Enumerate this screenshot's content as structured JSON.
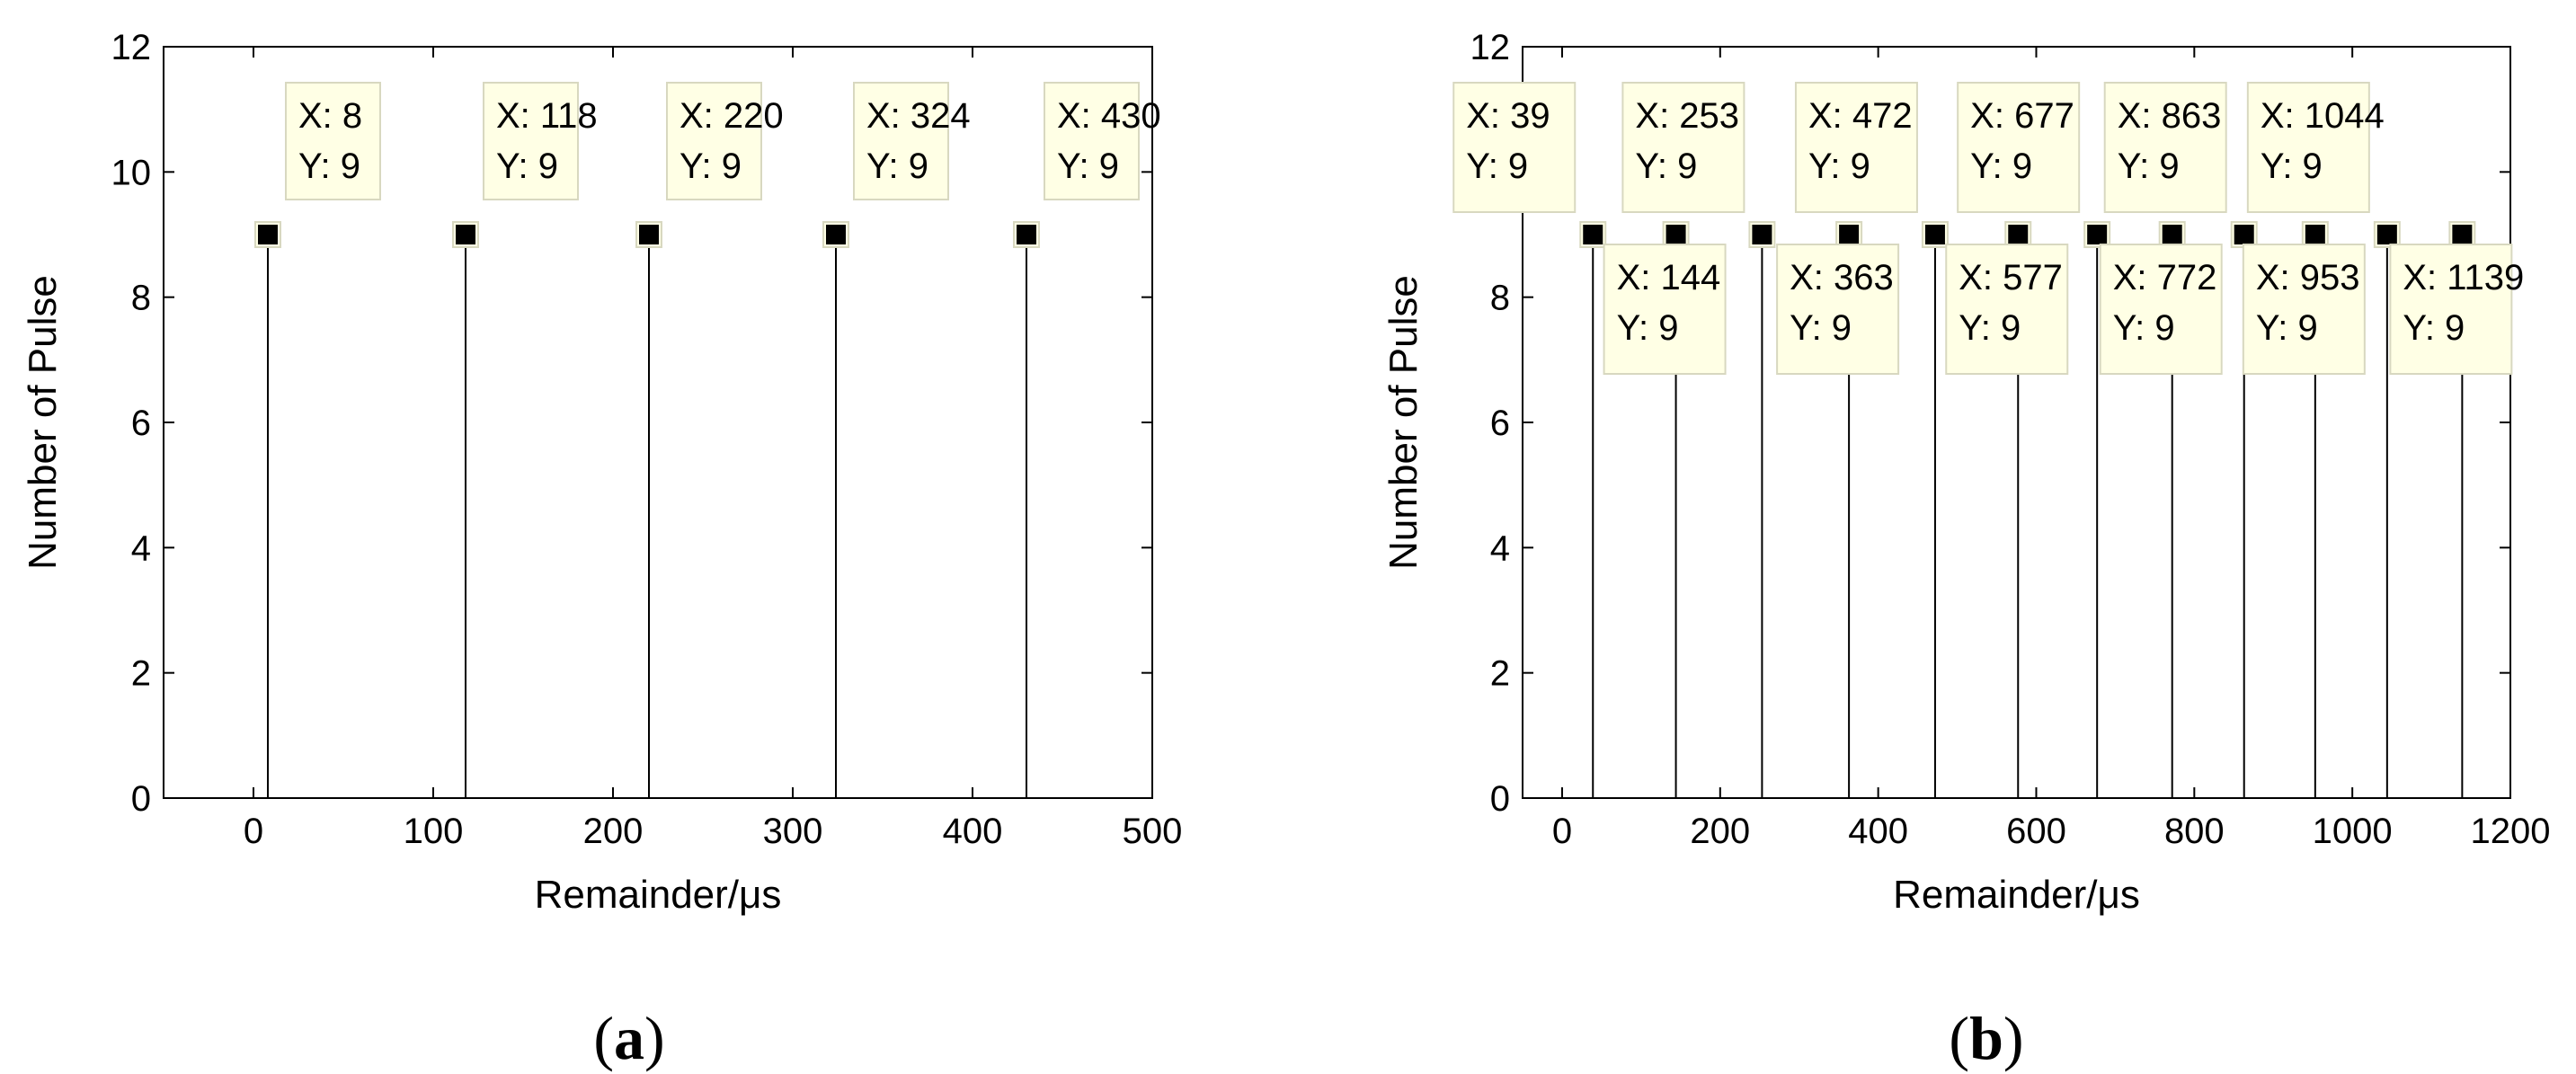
{
  "chart_data": [
    {
      "type": "line",
      "panel_label": "a",
      "xlabel": "Remainder/μs",
      "ylabel": "Number of Pulse",
      "xlim": [
        -50,
        500
      ],
      "ylim": [
        0,
        12
      ],
      "xticks": [
        0,
        100,
        200,
        300,
        400,
        500
      ],
      "yticks": [
        0,
        2,
        4,
        6,
        8,
        10,
        12
      ],
      "grid": false,
      "series": [
        {
          "x": [
            8,
            118,
            220,
            324,
            430
          ],
          "y": [
            9,
            9,
            9,
            9,
            9
          ]
        }
      ],
      "datatips": [
        {
          "x_text": "X: 8",
          "y_text": "Y: 9",
          "x": 8,
          "y": 9
        },
        {
          "x_text": "X: 118",
          "y_text": "Y: 9",
          "x": 118,
          "y": 9
        },
        {
          "x_text": "X: 220",
          "y_text": "Y: 9",
          "x": 220,
          "y": 9
        },
        {
          "x_text": "X: 324",
          "y_text": "Y: 9",
          "x": 324,
          "y": 9
        },
        {
          "x_text": "X: 430",
          "y_text": "Y: 9",
          "x": 430,
          "y": 9
        }
      ]
    },
    {
      "type": "line",
      "panel_label": "b",
      "xlabel": "Remainder/μs",
      "ylabel": "Number of Pulse",
      "xlim": [
        -50,
        1200
      ],
      "ylim": [
        0,
        12
      ],
      "xticks": [
        0,
        200,
        400,
        600,
        800,
        1000,
        1200
      ],
      "yticks": [
        0,
        2,
        4,
        6,
        8,
        10,
        12
      ],
      "grid": false,
      "series": [
        {
          "x": [
            39,
            144,
            253,
            363,
            472,
            577,
            677,
            772,
            863,
            953,
            1044,
            1139
          ],
          "y": [
            9,
            9,
            9,
            9,
            9,
            9,
            9,
            9,
            9,
            9,
            9,
            9
          ]
        }
      ],
      "datatips": [
        {
          "x_text": "X: 39",
          "y_text": "Y: 9",
          "x": 39,
          "y": 9,
          "placement": "above"
        },
        {
          "x_text": "X: 144",
          "y_text": "Y: 9",
          "x": 144,
          "y": 9,
          "placement": "below"
        },
        {
          "x_text": "X: 253",
          "y_text": "Y: 9",
          "x": 253,
          "y": 9,
          "placement": "above"
        },
        {
          "x_text": "X: 363",
          "y_text": "Y: 9",
          "x": 363,
          "y": 9,
          "placement": "below"
        },
        {
          "x_text": "X: 472",
          "y_text": "Y: 9",
          "x": 472,
          "y": 9,
          "placement": "above"
        },
        {
          "x_text": "X: 577",
          "y_text": "Y: 9",
          "x": 577,
          "y": 9,
          "placement": "below"
        },
        {
          "x_text": "X: 677",
          "y_text": "Y: 9",
          "x": 677,
          "y": 9,
          "placement": "above"
        },
        {
          "x_text": "X: 772",
          "y_text": "Y: 9",
          "x": 772,
          "y": 9,
          "placement": "below"
        },
        {
          "x_text": "X: 863",
          "y_text": "Y: 9",
          "x": 863,
          "y": 9,
          "placement": "above"
        },
        {
          "x_text": "X: 953",
          "y_text": "Y: 9",
          "x": 953,
          "y": 9,
          "placement": "below"
        },
        {
          "x_text": "X: 1044",
          "y_text": "Y: 9",
          "x": 1044,
          "y": 9,
          "placement": "above"
        },
        {
          "x_text": "X: 1139",
          "y_text": "Y: 9",
          "x": 1139,
          "y": 9,
          "placement": "below"
        }
      ]
    }
  ],
  "colors": {
    "line": "#000000",
    "marker": "#000000",
    "datatip_fill": "#ffffe5",
    "datatip_border": "#d8d8c0",
    "axes": "#000000"
  }
}
